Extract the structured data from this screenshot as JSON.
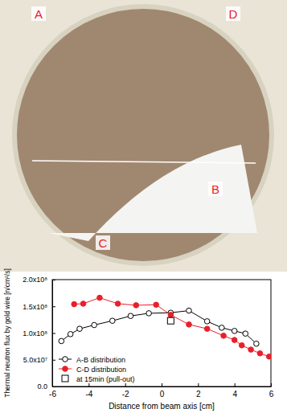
{
  "chart_data": {
    "type": "line",
    "annotations": [
      "A",
      "B",
      "C",
      "D"
    ],
    "x_label": "Distance from beam axis [cm]",
    "y_label": "Thermal neutron flux by gold wire [n/cm²/s]",
    "xlim": [
      -6,
      6
    ],
    "xticks": [
      -6,
      -4,
      -2,
      0,
      2,
      4,
      6
    ],
    "ylim": [
      0,
      200000000
    ],
    "yticks": [
      {
        "value": 0,
        "label": "0.0"
      },
      {
        "value": 50000000,
        "label": "5.0x10⁷"
      },
      {
        "value": 100000000,
        "label": "1.0x10⁸"
      },
      {
        "value": 150000000,
        "label": "1.5x10⁸"
      },
      {
        "value": 200000000,
        "label": "2.0x10⁸"
      }
    ],
    "legend": "lower left",
    "series": [
      {
        "name": "A-B distribution",
        "color": "#000000",
        "marker": "circle-open",
        "line_style": "solid",
        "x": [
          -5.5,
          -5.0,
          -4.5,
          -3.7,
          -2.7,
          -1.7,
          -0.7,
          0.5,
          1.5,
          2.5,
          3.3,
          4.0,
          4.6,
          5.2
        ],
        "values": [
          85000000,
          98000000,
          108000000,
          115000000,
          123000000,
          132000000,
          137000000,
          138000000,
          142000000,
          122000000,
          110000000,
          104000000,
          99000000,
          80000000
        ]
      },
      {
        "name": "C-D distribution",
        "color": "#e8202a",
        "marker": "circle-filled",
        "line_style": "solid",
        "x": [
          -4.8,
          -4.3,
          -3.4,
          -2.4,
          -1.4,
          -0.3,
          0.5,
          1.5,
          2.5,
          3.4,
          4.0,
          4.4,
          4.9,
          5.4,
          5.9
        ],
        "values": [
          154000000,
          155000000,
          166000000,
          155000000,
          152000000,
          153000000,
          134000000,
          116000000,
          108000000,
          95000000,
          87000000,
          77000000,
          69000000,
          62000000,
          56000000
        ]
      },
      {
        "name": "at 15min (pull-out)",
        "color": "#000000",
        "marker": "square-open",
        "line_style": "none",
        "x": [
          0.5
        ],
        "values": [
          123000000
        ]
      }
    ]
  }
}
